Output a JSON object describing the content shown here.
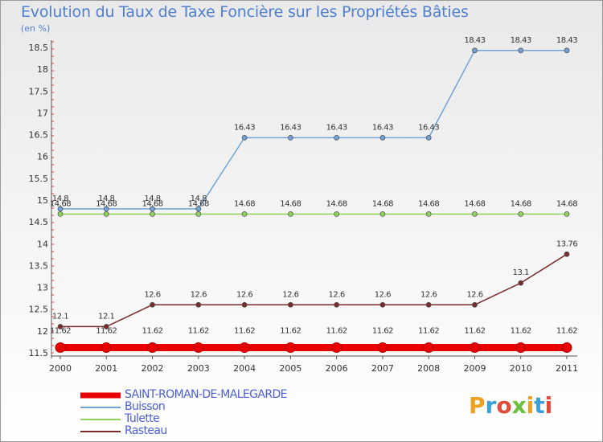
{
  "title": "Evolution du Taux de Taxe Foncière sur les Propriétés Bâties",
  "subtitle": "(en %)",
  "logo_text": "Proxiti",
  "chart_data": {
    "type": "line",
    "title": "Evolution du Taux de Taxe Foncière sur les Propriétés Bâties",
    "ylabel": "(en %)",
    "xlabel": "",
    "categories": [
      "2000",
      "2001",
      "2002",
      "2003",
      "2004",
      "2005",
      "2006",
      "2007",
      "2008",
      "2009",
      "2010",
      "2011"
    ],
    "yticks": [
      "11.5",
      "12",
      "12.5",
      "13",
      "13.5",
      "14",
      "14.5",
      "15",
      "15.5",
      "16",
      "16.5",
      "17",
      "17.5",
      "18",
      "18.5"
    ],
    "ylim": [
      11.5,
      18.5
    ],
    "grid": false,
    "legend": "bottom-left",
    "series": [
      {
        "name": "SAINT-ROMAN-DE-MALEGARDE",
        "color": "#e80000",
        "values": [
          11.62,
          11.62,
          11.62,
          11.62,
          11.62,
          11.62,
          11.62,
          11.62,
          11.62,
          11.62,
          11.62,
          11.62
        ],
        "labels": [
          "11.62",
          "11.62",
          "11.62",
          "11.62",
          "11.62",
          "11.62",
          "11.62",
          "11.62",
          "11.62",
          "11.62",
          "11.62",
          "11.62"
        ]
      },
      {
        "name": "Buisson",
        "color": "#6fa3d8",
        "values": [
          14.8,
          14.8,
          14.8,
          14.8,
          16.43,
          16.43,
          16.43,
          16.43,
          16.43,
          18.43,
          18.43,
          18.43
        ],
        "labels": [
          "14.8",
          "14.8",
          "14.8",
          "14.8",
          "16.43",
          "16.43",
          "16.43",
          "16.43",
          "16.43",
          "18.43",
          "18.43",
          "18.43"
        ]
      },
      {
        "name": "Tulette",
        "color": "#8fd45a",
        "values": [
          14.68,
          14.68,
          14.68,
          14.68,
          14.68,
          14.68,
          14.68,
          14.68,
          14.68,
          14.68,
          14.68,
          14.68
        ],
        "labels": [
          "14.68",
          "14.68",
          "14.68",
          "14.68",
          "14.68",
          "14.68",
          "14.68",
          "14.68",
          "14.68",
          "14.68",
          "14.68",
          "14.68"
        ]
      },
      {
        "name": "Rasteau",
        "color": "#7a2a2a",
        "values": [
          12.1,
          12.1,
          12.6,
          12.6,
          12.6,
          12.6,
          12.6,
          12.6,
          12.6,
          12.6,
          13.1,
          13.76
        ],
        "labels": [
          "12.1",
          "12.1",
          "12.6",
          "12.6",
          "12.6",
          "12.6",
          "12.6",
          "12.6",
          "12.6",
          "12.6",
          "13.1",
          "13.76"
        ]
      }
    ]
  }
}
